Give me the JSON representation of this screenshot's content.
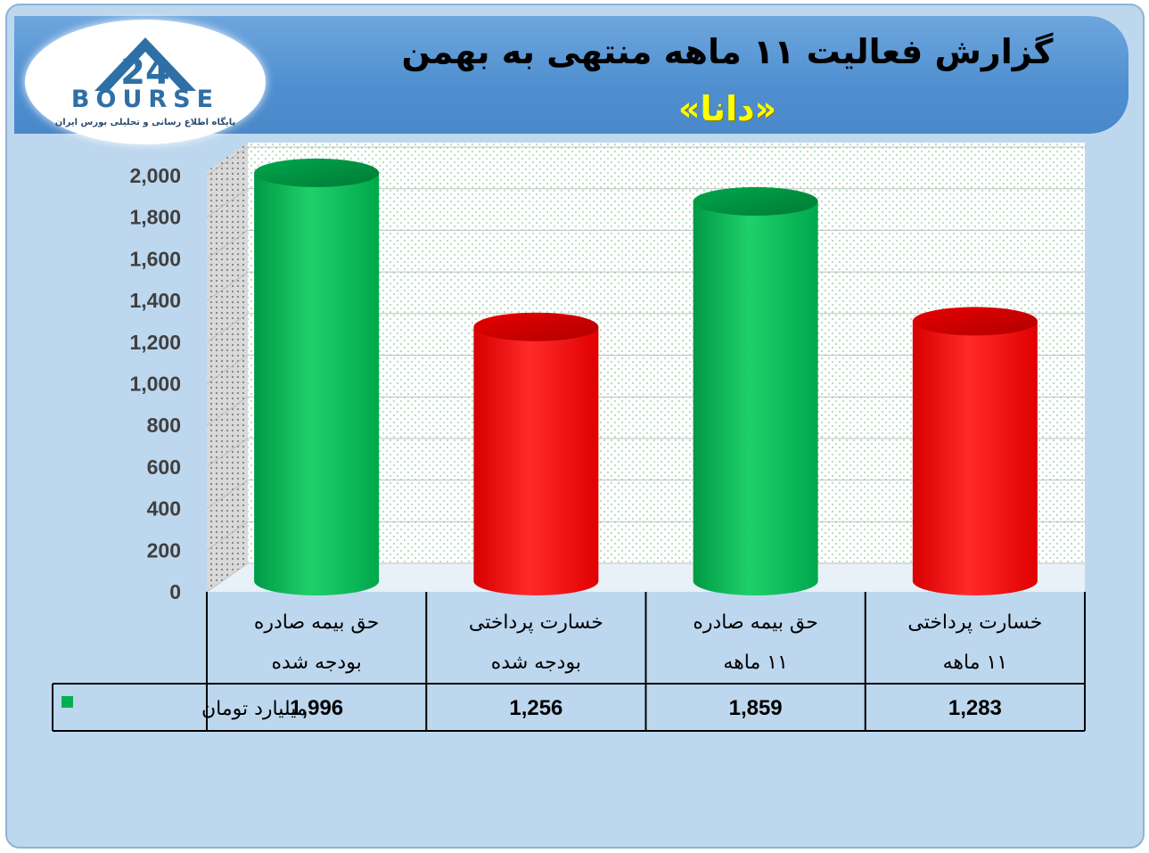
{
  "header": {
    "title": "گزارش فعالیت ۱۱ ماهه منتهی به بهمن",
    "company": "«دانا»"
  },
  "logo": {
    "mark": "24",
    "text": "BOURSE",
    "subtitle": "پایگاه اطلاع رسانی و تحلیلی بورس ایران"
  },
  "chart_data": {
    "type": "bar",
    "categories": [
      [
        "حق بیمه صادره",
        "بودجه شده"
      ],
      [
        "خسارت پرداختی",
        "بودجه شده"
      ],
      [
        "حق بیمه صادره",
        "۱۱ ماهه"
      ],
      [
        "خسارت پرداختی",
        "۱۱ ماهه"
      ]
    ],
    "series": [
      {
        "name": "میلیارد تومان",
        "values": [
          1996,
          1256,
          1859,
          1283
        ],
        "value_labels": [
          "1,996",
          "1,256",
          "1,859",
          "1,283"
        ]
      }
    ],
    "bar_colors": [
      "#00b050",
      "#ff0000",
      "#00b050",
      "#ff0000"
    ],
    "legend_color": "#00b050",
    "ylim": [
      0,
      2000
    ],
    "yticks": [
      0,
      200,
      400,
      600,
      800,
      1000,
      1200,
      1400,
      1600,
      1800,
      2000
    ],
    "ytick_labels": [
      "0",
      "200",
      "400",
      "600",
      "800",
      "1,000",
      "1,200",
      "1,400",
      "1,600",
      "1,800",
      "2,000"
    ],
    "grid": true,
    "data_table": true
  }
}
